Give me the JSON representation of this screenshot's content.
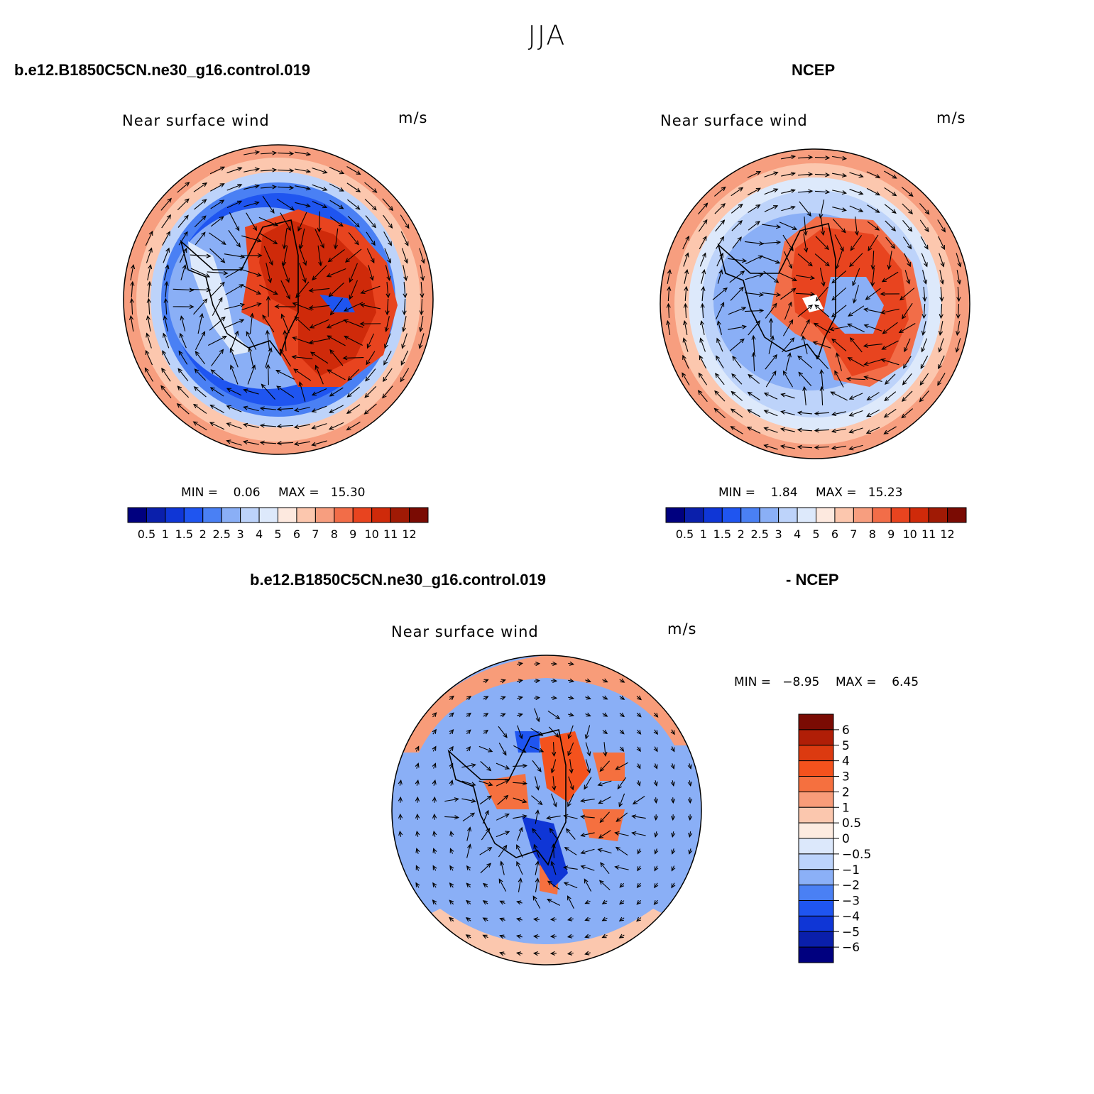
{
  "figure": {
    "title": "JJA",
    "case_name": "b.e12.B1850C5CN.ne30_g16.control.019",
    "obs_name": "NCEP",
    "diff_case_name": "b.e12.B1850C5CN.ne30_g16.control.019",
    "diff_obs_name": "- NCEP"
  },
  "colors": {
    "seq": [
      "#00007f",
      "#0a1fab",
      "#0f36d6",
      "#1f55f0",
      "#4a80f4",
      "#8aaff6",
      "#bdd3fa",
      "#dde9fb",
      "#fde9df",
      "#fcc7ae",
      "#f79e7f",
      "#f26d48",
      "#e8441f",
      "#cf2a0a",
      "#a01a05",
      "#7a0b03"
    ]
  },
  "chart_data": [
    {
      "type": "heatmap",
      "projection": "south-polar-stereographic",
      "panel": "model",
      "title": "Near surface wind",
      "units": "m/s",
      "min_label": "MIN =    0.06",
      "max_label": "MAX =   15.30",
      "min": 0.06,
      "max": 15.3,
      "colorbar_levels": [
        "0.5",
        "1",
        "1.5",
        "2",
        "2.5",
        "3",
        "4",
        "5",
        "6",
        "7",
        "8",
        "9",
        "10",
        "11",
        "12"
      ],
      "legend_placement": "bottom"
    },
    {
      "type": "heatmap",
      "projection": "south-polar-stereographic",
      "panel": "observation",
      "title": "Near surface wind",
      "units": "m/s",
      "min_label": "MIN =    1.84",
      "max_label": "MAX =   15.23",
      "min": 1.84,
      "max": 15.23,
      "colorbar_levels": [
        "0.5",
        "1",
        "1.5",
        "2",
        "2.5",
        "3",
        "4",
        "5",
        "6",
        "7",
        "8",
        "9",
        "10",
        "11",
        "12"
      ],
      "legend_placement": "bottom"
    },
    {
      "type": "heatmap",
      "projection": "south-polar-stereographic",
      "panel": "difference",
      "title": "Near surface wind",
      "units": "m/s",
      "min_label": "MIN =   −8.95",
      "max_label": "MAX =    6.45",
      "min": -8.95,
      "max": 6.45,
      "colorbar_levels": [
        "6",
        "5",
        "4",
        "3",
        "2",
        "1",
        "0.5",
        "0",
        "−0.5",
        "−1",
        "−2",
        "−3",
        "−4",
        "−5",
        "−6"
      ],
      "colorbar_colors": [
        "#7a0b03",
        "#b01e07",
        "#dc3a10",
        "#f4521d",
        "#f5703f",
        "#f89c79",
        "#fbc7ae",
        "#fdebe0",
        "#dce8fb",
        "#bcd3fb",
        "#8bb0f7",
        "#4a80f4",
        "#1f55f0",
        "#0f36d6",
        "#0a1fab",
        "#00007f"
      ],
      "legend_placement": "right"
    }
  ]
}
